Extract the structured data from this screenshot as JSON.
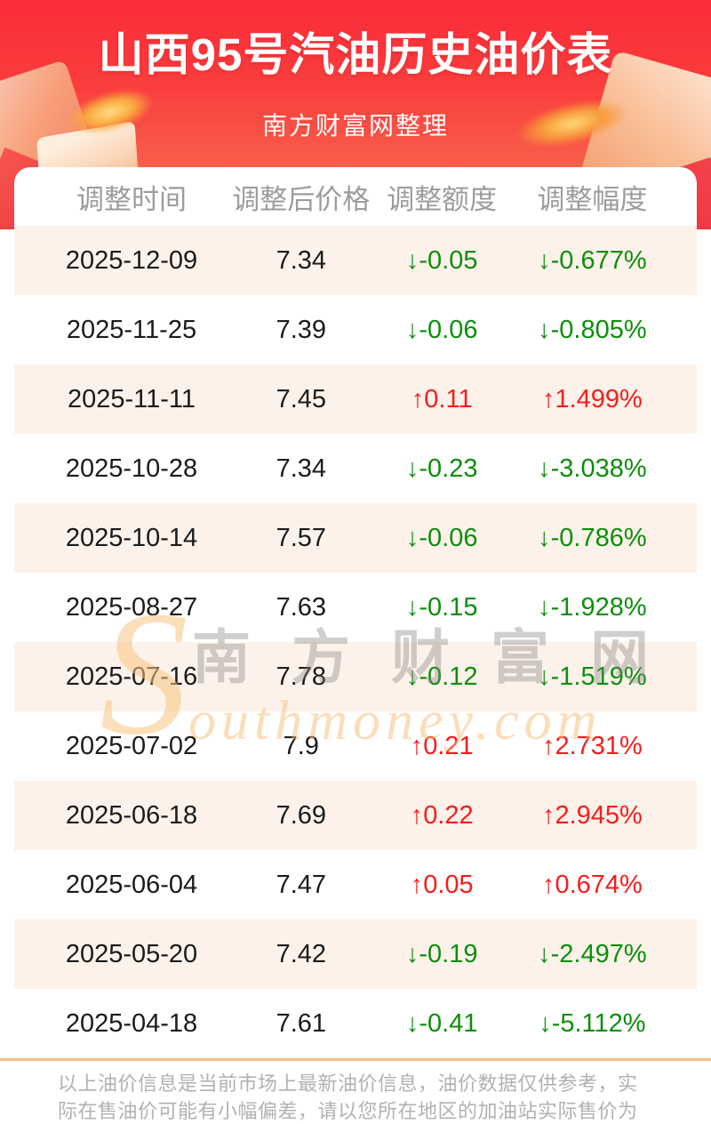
{
  "header": {
    "title": "山西95号汽油历史油价表",
    "subtitle": "南方财富网整理"
  },
  "table": {
    "columns": [
      "调整时间",
      "调整后价格",
      "调整额度",
      "调整幅度"
    ],
    "rows": [
      {
        "date": "2025-12-09",
        "price": "7.34",
        "change": "↓-0.05",
        "pct": "↓-0.677%",
        "dir": "down"
      },
      {
        "date": "2025-11-25",
        "price": "7.39",
        "change": "↓-0.06",
        "pct": "↓-0.805%",
        "dir": "down"
      },
      {
        "date": "2025-11-11",
        "price": "7.45",
        "change": "↑0.11",
        "pct": "↑1.499%",
        "dir": "up"
      },
      {
        "date": "2025-10-28",
        "price": "7.34",
        "change": "↓-0.23",
        "pct": "↓-3.038%",
        "dir": "down"
      },
      {
        "date": "2025-10-14",
        "price": "7.57",
        "change": "↓-0.06",
        "pct": "↓-0.786%",
        "dir": "down"
      },
      {
        "date": "2025-08-27",
        "price": "7.63",
        "change": "↓-0.15",
        "pct": "↓-1.928%",
        "dir": "down"
      },
      {
        "date": "2025-07-16",
        "price": "7.78",
        "change": "↓-0.12",
        "pct": "↓-1.519%",
        "dir": "down"
      },
      {
        "date": "2025-07-02",
        "price": "7.9",
        "change": "↑0.21",
        "pct": "↑2.731%",
        "dir": "up"
      },
      {
        "date": "2025-06-18",
        "price": "7.69",
        "change": "↑0.22",
        "pct": "↑2.945%",
        "dir": "up"
      },
      {
        "date": "2025-06-04",
        "price": "7.47",
        "change": "↑0.05",
        "pct": "↑0.674%",
        "dir": "up"
      },
      {
        "date": "2025-05-20",
        "price": "7.42",
        "change": "↓-0.19",
        "pct": "↓-2.497%",
        "dir": "down"
      },
      {
        "date": "2025-04-18",
        "price": "7.61",
        "change": "↓-0.41",
        "pct": "↓-5.112%",
        "dir": "down"
      }
    ]
  },
  "watermark": {
    "big_s": "S",
    "cn": "南方财富网",
    "en": "outhmoney.com"
  },
  "footer": {
    "note": "以上油价信息是当前市场上最新油价信息，油价数据仅供参考，实际在售油价可能有小幅偏差，请以您所在地区的加油站实际售价为准。"
  },
  "colors": {
    "accent_red": "#fb2b39",
    "up_red": "#fb1b1b",
    "down_green": "#0b8f0b",
    "row_pink": "#fdf2ea",
    "separator_tan": "#f3bf82"
  }
}
